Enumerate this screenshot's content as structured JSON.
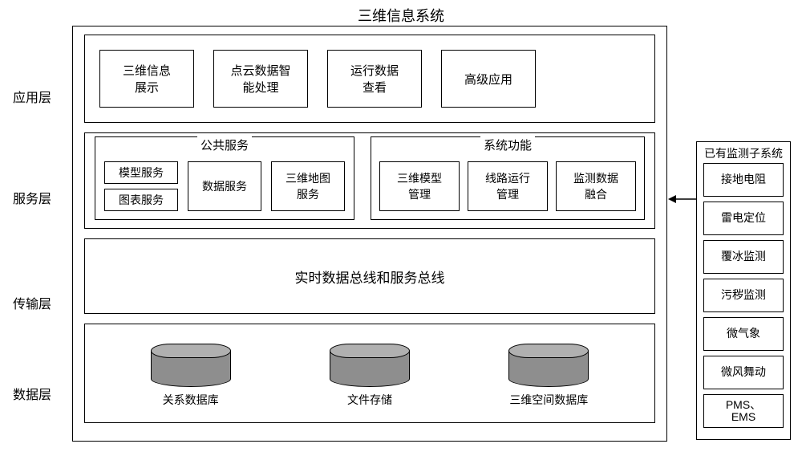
{
  "title": "三维信息系统",
  "layers": {
    "app": {
      "label": "应用层",
      "boxes": [
        "三维信息\n展示",
        "点云数据智\n能处理",
        "运行数据\n查看",
        "高级应用"
      ]
    },
    "svc": {
      "label": "服务层",
      "left": {
        "title": "公共服务",
        "col": [
          "模型服务",
          "图表服务"
        ],
        "boxes": [
          "数据服务",
          "三维地图\n服务"
        ]
      },
      "right": {
        "title": "系统功能",
        "boxes": [
          "三维模型\n管理",
          "线路运行\n管理",
          "监测数据\n融合"
        ]
      }
    },
    "trans": {
      "label": "传输层",
      "text": "实时数据总线和服务总线"
    },
    "data": {
      "label": "数据层",
      "dbs": [
        "关系数据库",
        "文件存储",
        "三维空间数据库"
      ]
    }
  },
  "subsys": {
    "title": "已有监测子系统",
    "items": [
      "接地电阻",
      "雷电定位",
      "覆冰监测",
      "污秽监测",
      "微气象",
      "微风舞动",
      "PMS、\nEMS"
    ]
  },
  "style": {
    "border_color": "#000000",
    "cylinder_top": "#b0b0b0",
    "cylinder_body": "#8e8e8e",
    "bg": "#ffffff"
  }
}
